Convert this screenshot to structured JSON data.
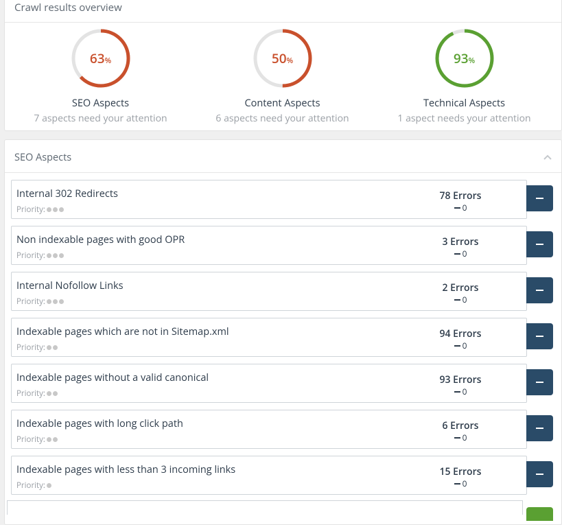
{
  "overview": {
    "title": "Crawl results overview",
    "gauges": [
      {
        "pct": "63",
        "unit": "%",
        "value": 0.63,
        "color": "#c9502c",
        "label": "SEO Aspects",
        "sub": "7 aspects need your attention"
      },
      {
        "pct": "50",
        "unit": "%",
        "value": 0.5,
        "color": "#c9502c",
        "label": "Content Aspects",
        "sub": "6 aspects need your attention"
      },
      {
        "pct": "93",
        "unit": "%",
        "value": 0.93,
        "color": "#5aa032",
        "label": "Technical Aspects",
        "sub": "1 aspect needs your attention"
      }
    ]
  },
  "seo": {
    "title": "SEO Aspects",
    "priority_label": "Priority:",
    "items": [
      {
        "title": "Internal 302 Redirects",
        "priority": 3,
        "errors": "78 Errors",
        "delta": "0"
      },
      {
        "title": "Non indexable pages with good OPR",
        "priority": 3,
        "errors": "3 Errors",
        "delta": "0"
      },
      {
        "title": "Internal Nofollow Links",
        "priority": 3,
        "errors": "2 Errors",
        "delta": "0"
      },
      {
        "title": "Indexable pages which are not in Sitemap.xml",
        "priority": 2,
        "errors": "94 Errors",
        "delta": "0"
      },
      {
        "title": "Indexable pages without a valid canonical",
        "priority": 2,
        "errors": "93 Errors",
        "delta": "0"
      },
      {
        "title": "Indexable pages with long click path",
        "priority": 2,
        "errors": "6 Errors",
        "delta": "0"
      },
      {
        "title": "Indexable pages with less than 3 incoming links",
        "priority": 1,
        "errors": "15 Errors",
        "delta": "0"
      }
    ]
  }
}
